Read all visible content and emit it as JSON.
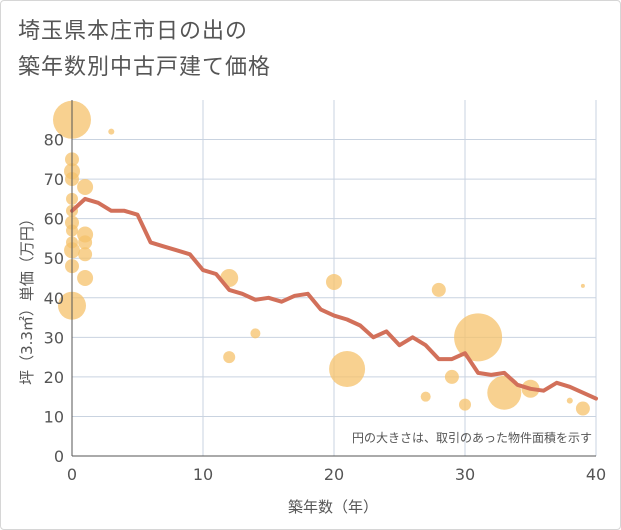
{
  "title_lines": [
    "埼玉県本庄市日の出の",
    "築年数別中古戸建て価格"
  ],
  "colors": {
    "bubble": "#f5c26b",
    "line": "#d2705a",
    "grid": "#c9d3e0",
    "text": "#555555"
  },
  "chart_data": {
    "type": "scatter",
    "xlabel": "築年数（年）",
    "ylabel": "坪（3.3㎡）単価（万円）",
    "xlim": [
      0,
      40
    ],
    "ylim": [
      0,
      90
    ],
    "xticks": [
      0,
      10,
      20,
      30,
      40
    ],
    "yticks": [
      0,
      10,
      20,
      30,
      40,
      50,
      60,
      70,
      80
    ],
    "grid": true,
    "note": "円の大きさは、取引のあった物件面積を示す",
    "bubbles": [
      {
        "x": 0,
        "y": 85,
        "r": 19
      },
      {
        "x": 0,
        "y": 75,
        "r": 7
      },
      {
        "x": 0,
        "y": 72,
        "r": 8
      },
      {
        "x": 0,
        "y": 70,
        "r": 7
      },
      {
        "x": 0,
        "y": 65,
        "r": 6
      },
      {
        "x": 0,
        "y": 62,
        "r": 6
      },
      {
        "x": 0,
        "y": 59,
        "r": 7
      },
      {
        "x": 0,
        "y": 57,
        "r": 6
      },
      {
        "x": 0,
        "y": 54,
        "r": 6
      },
      {
        "x": 0,
        "y": 52,
        "r": 8
      },
      {
        "x": 0,
        "y": 48,
        "r": 7
      },
      {
        "x": 0,
        "y": 38,
        "r": 14
      },
      {
        "x": 1,
        "y": 68,
        "r": 8
      },
      {
        "x": 1,
        "y": 56,
        "r": 8
      },
      {
        "x": 1,
        "y": 54,
        "r": 7
      },
      {
        "x": 1,
        "y": 51,
        "r": 7
      },
      {
        "x": 1,
        "y": 45,
        "r": 8
      },
      {
        "x": 3,
        "y": 82,
        "r": 3
      },
      {
        "x": 12,
        "y": 45,
        "r": 9
      },
      {
        "x": 12,
        "y": 25,
        "r": 6
      },
      {
        "x": 14,
        "y": 31,
        "r": 5
      },
      {
        "x": 20,
        "y": 44,
        "r": 8
      },
      {
        "x": 21,
        "y": 22,
        "r": 18
      },
      {
        "x": 27,
        "y": 15,
        "r": 5
      },
      {
        "x": 28,
        "y": 42,
        "r": 7
      },
      {
        "x": 29,
        "y": 20,
        "r": 7
      },
      {
        "x": 30,
        "y": 13,
        "r": 6
      },
      {
        "x": 31,
        "y": 30,
        "r": 24
      },
      {
        "x": 33,
        "y": 16,
        "r": 17
      },
      {
        "x": 35,
        "y": 17,
        "r": 9
      },
      {
        "x": 38,
        "y": 14,
        "r": 3
      },
      {
        "x": 39,
        "y": 43,
        "r": 2
      },
      {
        "x": 39,
        "y": 12,
        "r": 7
      }
    ],
    "trend": [
      [
        0,
        62
      ],
      [
        1,
        65
      ],
      [
        2,
        64
      ],
      [
        3,
        62
      ],
      [
        4,
        62
      ],
      [
        5,
        61
      ],
      [
        6,
        54
      ],
      [
        7,
        53
      ],
      [
        8,
        52
      ],
      [
        9,
        51
      ],
      [
        10,
        47
      ],
      [
        11,
        46
      ],
      [
        12,
        42
      ],
      [
        13,
        41
      ],
      [
        14,
        39.5
      ],
      [
        15,
        40
      ],
      [
        16,
        39
      ],
      [
        17,
        40.5
      ],
      [
        18,
        41
      ],
      [
        19,
        37
      ],
      [
        20,
        35.5
      ],
      [
        21,
        34.5
      ],
      [
        22,
        33
      ],
      [
        23,
        30
      ],
      [
        24,
        31.5
      ],
      [
        25,
        28
      ],
      [
        26,
        30
      ],
      [
        27,
        28
      ],
      [
        28,
        24.5
      ],
      [
        29,
        24.5
      ],
      [
        30,
        26
      ],
      [
        31,
        21
      ],
      [
        32,
        20.5
      ],
      [
        33,
        21
      ],
      [
        34,
        18
      ],
      [
        35,
        17
      ],
      [
        36,
        16.5
      ],
      [
        37,
        18.5
      ],
      [
        38,
        17.5
      ],
      [
        39,
        16
      ],
      [
        40,
        14.5
      ]
    ]
  }
}
